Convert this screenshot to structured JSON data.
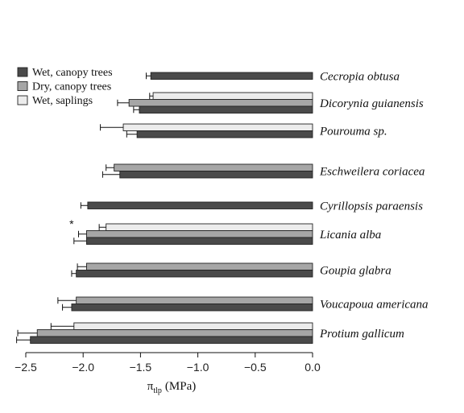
{
  "chart_data": {
    "type": "bar",
    "orientation": "horizontal",
    "xlabel": "π",
    "xlabel_subscript": "tlp",
    "xlabel_unit": "(MPa)",
    "xlim": [
      -2.5,
      0.0
    ],
    "xticks": [
      "−2.5",
      "−2.0",
      "−1.5",
      "−1.0",
      "−0.5",
      "0.0"
    ],
    "xtick_values": [
      -2.5,
      -2.0,
      -1.5,
      -1.0,
      -0.5,
      0.0
    ],
    "legend_position": "top-left",
    "series": [
      {
        "name": "Wet, canopy trees",
        "color": "#4a4a4a"
      },
      {
        "name": "Dry, canopy trees",
        "color": "#a6a6a6"
      },
      {
        "name": "Wet, saplings",
        "color": "#ececec"
      }
    ],
    "groups": [
      {
        "species": "Cecropia obtusa",
        "bars": [
          {
            "series": 0,
            "value": -1.41,
            "err": 0.04
          }
        ]
      },
      {
        "species": "Dicorynia guianensis",
        "bars": [
          {
            "series": 2,
            "value": -1.39,
            "err": 0.03
          },
          {
            "series": 1,
            "value": -1.6,
            "err": 0.1
          },
          {
            "series": 0,
            "value": -1.51,
            "err": 0.05
          }
        ]
      },
      {
        "species": "Pourouma sp.",
        "bars": [
          {
            "series": 2,
            "value": -1.65,
            "err": 0.2
          },
          {
            "series": 0,
            "value": -1.53,
            "err": 0.09
          }
        ]
      },
      {
        "species": "Eschweilera coriacea",
        "bars": [
          {
            "series": 1,
            "value": -1.73,
            "err": 0.07
          },
          {
            "series": 0,
            "value": -1.68,
            "err": 0.15
          }
        ]
      },
      {
        "species": "Cyrillopsis paraensis",
        "bars": [
          {
            "series": 0,
            "value": -1.96,
            "err": 0.06
          }
        ]
      },
      {
        "species": "Licania alba",
        "annotation": "*",
        "bars": [
          {
            "series": 2,
            "value": -1.8,
            "err": 0.06
          },
          {
            "series": 1,
            "value": -1.97,
            "err": 0.07
          },
          {
            "series": 0,
            "value": -1.97,
            "err": 0.11
          }
        ]
      },
      {
        "species": "Goupia glabra",
        "bars": [
          {
            "series": 1,
            "value": -1.97,
            "err": 0.08
          },
          {
            "series": 0,
            "value": -2.06,
            "err": 0.04
          }
        ]
      },
      {
        "species": "Voucapoua americana",
        "bars": [
          {
            "series": 1,
            "value": -2.06,
            "err": 0.16
          },
          {
            "series": 0,
            "value": -2.1,
            "err": 0.08
          }
        ]
      },
      {
        "species": "Protium gallicum",
        "bars": [
          {
            "series": 2,
            "value": -2.08,
            "err": 0.2
          },
          {
            "series": 1,
            "value": -2.4,
            "err": 0.17
          },
          {
            "series": 0,
            "value": -2.46,
            "err": 0.12
          }
        ]
      }
    ]
  }
}
